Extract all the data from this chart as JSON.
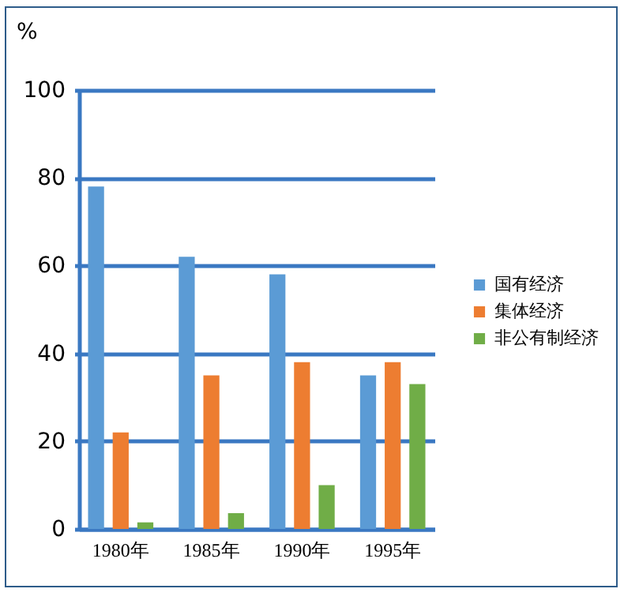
{
  "chart_data": {
    "type": "bar",
    "ylabel": "%",
    "categories": [
      "1980年",
      "1985年",
      "1990年",
      "1995年"
    ],
    "series": [
      {
        "name": "国有经济",
        "color": "#5b9bd5",
        "values": [
          78,
          62,
          58,
          35
        ]
      },
      {
        "name": "集体经济",
        "color": "#ed7d31",
        "values": [
          22,
          35,
          38,
          38
        ]
      },
      {
        "name": "非公有制经济",
        "color": "#70ad47",
        "values": [
          1.5,
          3.6,
          10,
          33
        ]
      }
    ],
    "ylim": [
      0,
      100
    ],
    "yticks": [
      0,
      20,
      40,
      60,
      80,
      100
    ],
    "grid": "y",
    "legend": "right"
  }
}
